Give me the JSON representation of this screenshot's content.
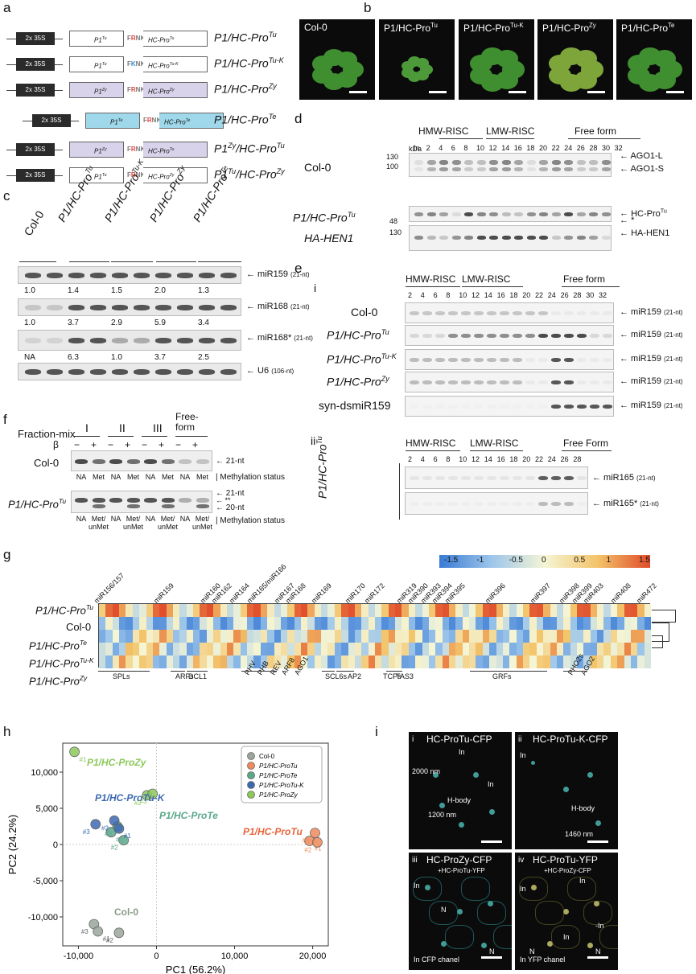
{
  "panels": {
    "a": "a",
    "b": "b",
    "c": "c",
    "d": "d",
    "e": "e",
    "f": "f",
    "g": "g",
    "h": "h",
    "i": "i"
  },
  "panel_a": {
    "promoter": "2x 35S",
    "constructs": [
      {
        "p1": "P1Tu",
        "motif": [
          "F",
          "R",
          "N",
          "K"
        ],
        "hc": "HC-ProTu",
        "name": "P1/HC-ProTu",
        "color": "#ffffff"
      },
      {
        "p1": "P1Tu",
        "motif": [
          "F",
          "K",
          "N",
          "K"
        ],
        "hc": "HC-ProTu-K",
        "name": "P1/HC-ProTu-K",
        "color": "#ffffff"
      },
      {
        "p1": "P1Zy",
        "motif": [
          "F",
          "R",
          "N",
          "K"
        ],
        "hc": "HC-ProZy",
        "name": "P1/HC-ProZy",
        "color": "#d8d2ea"
      },
      {
        "p1": "P1Te",
        "motif": [
          "F",
          "R",
          "N",
          "K"
        ],
        "hc": "HC-ProTe",
        "name": "P1/HC-ProTe",
        "color": "#9fd8ea"
      },
      {
        "p1": "P1Zy",
        "motif": [
          "F",
          "R",
          "N",
          "K"
        ],
        "hc": "HC-ProTu",
        "name": "P1Zy/HC-ProTu",
        "color": "#d8d2ea"
      },
      {
        "p1": "P1Tu",
        "motif": [
          "F",
          "R",
          "N",
          "K"
        ],
        "hc": "HC-ProZy",
        "name": "P1Tu/HC-ProZy",
        "color": "#ffffff"
      }
    ]
  },
  "panel_b": {
    "photos": [
      "Col-0",
      "P1/HC-ProTu",
      "P1/HC-ProTu-K",
      "P1/HC-ProZy",
      "P1/HC-ProTe"
    ]
  },
  "panel_c": {
    "lanes": [
      "Col-0",
      "P1/HC-ProTu",
      "P1/HC-ProTu-K",
      "P1/HC-ProZy",
      "P1/HC-ProTe"
    ],
    "blots": [
      {
        "label": "miR159",
        "size": "(21-nt)",
        "values": [
          "1.0",
          "1.4",
          "1.5",
          "2.0",
          "1.3"
        ]
      },
      {
        "label": "miR168",
        "size": "(21-nt)",
        "values": [
          "1.0",
          "3.7",
          "2.9",
          "5.9",
          "3.4"
        ]
      },
      {
        "label": "miR168*",
        "size": "(21-nt)",
        "values": [
          "NA",
          "6.3",
          "1.0",
          "3.7",
          "2.5"
        ]
      },
      {
        "label": "U6",
        "size": "(106-nt)",
        "values": []
      }
    ]
  },
  "panel_d": {
    "kda": "kDa",
    "groups": [
      "HMW-RISC",
      "LMW-RISC",
      "Free form"
    ],
    "fractions": [
      "In",
      "2",
      "4",
      "6",
      "8",
      "10",
      "12",
      "14",
      "16",
      "18",
      "20",
      "22",
      "24",
      "26",
      "28",
      "30",
      "32"
    ],
    "rows": [
      {
        "name": "Col-0",
        "markers": [
          "130",
          "100"
        ],
        "targets": [
          "AGO1-L",
          "AGO1-S"
        ]
      },
      {
        "name": "P1/HC-ProTu",
        "markers": [
          "48"
        ],
        "targets": [
          "HC-ProTu",
          "*"
        ]
      },
      {
        "name": "HA-HEN1",
        "markers": [
          "130"
        ],
        "targets": [
          "HA-HEN1"
        ]
      }
    ]
  },
  "panel_e": {
    "sub_i": "i",
    "sub_ii": "ii",
    "groups": [
      "HMW-RISC",
      "LMW-RISC",
      "Free form"
    ],
    "groups_ii": [
      "HMW-RISC",
      "LMW-RISC",
      "Free Form"
    ],
    "fractions": [
      "2",
      "4",
      "6",
      "8",
      "10",
      "12",
      "14",
      "16",
      "18",
      "20",
      "22",
      "24",
      "26",
      "28",
      "30",
      "32"
    ],
    "fractions_ii": [
      "2",
      "4",
      "6",
      "8",
      "10",
      "12",
      "14",
      "16",
      "18",
      "20",
      "22",
      "24",
      "26",
      "28"
    ],
    "rows_i": [
      {
        "name": "Col-0",
        "target": "miR159",
        "size": "(21-nt)"
      },
      {
        "name": "P1/HC-ProTu",
        "target": "miR159",
        "size": "(21-nt)"
      },
      {
        "name": "P1/HC-ProTu-K",
        "target": "miR159",
        "size": "(21-nt)"
      },
      {
        "name": "P1/HC-ProZy",
        "target": "miR159",
        "size": "(21-nt)"
      },
      {
        "name": "syn-dsmiR159",
        "target": "miR159",
        "size": "(21-nt)"
      }
    ],
    "row_ii_name": "P1/HC-ProTu",
    "rows_ii": [
      {
        "target": "miR165",
        "size": "(21-nt)"
      },
      {
        "target": "miR165*",
        "size": "(21-nt)"
      }
    ]
  },
  "panel_f": {
    "header": "Fraction-mix",
    "mixes": [
      "I",
      "II",
      "III",
      "Free-form"
    ],
    "beta": "β",
    "signs": [
      "−",
      "+",
      "−",
      "+",
      "−",
      "+",
      "−",
      "+"
    ],
    "rows": [
      {
        "name": "Col-0",
        "markers": [
          "21-nt"
        ],
        "status": [
          "NA",
          "Met",
          "NA",
          "Met",
          "NA",
          "Met",
          "NA",
          "Met"
        ]
      },
      {
        "name": "P1/HC-ProTu",
        "markers": [
          "21-nt",
          "**",
          "20-nt"
        ],
        "status": [
          "NA",
          "Met/ unMet",
          "NA",
          "Met/ unMet",
          "NA",
          "Met/ unMet",
          "NA",
          "Met/ unMet"
        ]
      }
    ],
    "status_label": "Methylation status"
  },
  "panel_g": {
    "scale_ticks": [
      "-1.5",
      "-1",
      "-0.5",
      "0",
      "0.5",
      "1",
      "1.5"
    ],
    "mirnas": [
      "miR156/157",
      "miR159",
      "miR160",
      "miR162",
      "miR164",
      "miR165/miR166",
      "miR167",
      "miR168",
      "miR169",
      "miR170",
      "miR172",
      "miR319",
      "miR390",
      "miR393",
      "miR394",
      "miR395",
      "miR396",
      "miR397",
      "miR398",
      "miR399",
      "miR403",
      "miR408",
      "miR472"
    ],
    "rows": [
      "P1/HC-ProTu",
      "Col-0",
      "P1/HC-ProTe",
      "P1/HC-ProTu-K",
      "P1/HC-ProZy"
    ],
    "targets": [
      "SPLs",
      "ARFs",
      "DCL1",
      "PHV",
      "PHB",
      "REV",
      "ARF8",
      "AGO1",
      "SCL6s",
      "AP2",
      "TCPs",
      "TAS3",
      "GRFs",
      "PHO2s",
      "AGO2"
    ]
  },
  "chart_data": {
    "type": "scatter",
    "xlabel": "PC1 (56.2%)",
    "ylabel": "PC2 (24.2%)",
    "xlim": [
      -12000,
      22000
    ],
    "ylim": [
      -14000,
      14000
    ],
    "xticks": [
      "-10,000",
      "0",
      "10,000",
      "20,000"
    ],
    "yticks": [
      "10,000",
      "5,000",
      "0",
      "-5,000",
      "-10,000"
    ],
    "legend": [
      "Col-0",
      "P1/HC-ProTu",
      "P1/HC-ProTe",
      "P1/HC-ProTu-K",
      "P1/HC-ProZy"
    ],
    "legend_position": "top-right",
    "series": [
      {
        "name": "Col-0",
        "color": "#9aa69a",
        "points": [
          {
            "x": -8000,
            "y": -11000,
            "label": "#3"
          },
          {
            "x": -7500,
            "y": -12000,
            "label": "#1"
          },
          {
            "x": -4800,
            "y": -12200,
            "label": "#2"
          }
        ]
      },
      {
        "name": "P1/HC-ProTu",
        "color": "#f08a5a",
        "points": [
          {
            "x": 20300,
            "y": 1600,
            "label": "#3"
          },
          {
            "x": 19600,
            "y": 500,
            "label": "#1"
          },
          {
            "x": 20600,
            "y": 300,
            "label": "#2"
          }
        ]
      },
      {
        "name": "P1/HC-ProTe",
        "color": "#5aa88a",
        "points": [
          {
            "x": -5000,
            "y": 2500,
            "label": "#3"
          },
          {
            "x": -5800,
            "y": 1700,
            "label": "#1"
          },
          {
            "x": -4200,
            "y": 600,
            "label": "#2"
          }
        ]
      },
      {
        "name": "P1/HC-ProTu-K",
        "color": "#3c6ab0",
        "points": [
          {
            "x": -7800,
            "y": 2800,
            "label": "#3"
          },
          {
            "x": -5400,
            "y": 3300,
            "label": "#2"
          },
          {
            "x": -4800,
            "y": 2200,
            "label": "#1"
          }
        ]
      },
      {
        "name": "P1/HC-ProZy",
        "color": "#8cc85a",
        "points": [
          {
            "x": -10500,
            "y": 12800,
            "label": "#1"
          },
          {
            "x": -1200,
            "y": 6800,
            "label": "#2"
          },
          {
            "x": -500,
            "y": 7000,
            "label": "#3"
          }
        ]
      }
    ],
    "series_labels": [
      "P1/HC-ProZy",
      "P1/HC-ProTu-K",
      "P1/HC-ProTe",
      "P1/HC-ProTu",
      "Col-0"
    ]
  },
  "panel_i": {
    "tiles": [
      {
        "num": "i",
        "title": "HC-ProTu-CFP",
        "notes": [
          "In",
          "In",
          "2000 nm",
          "H-body",
          "1200 nm"
        ]
      },
      {
        "num": "ii",
        "title": "HC-ProTu-K-CFP",
        "notes": [
          "In",
          "H-body",
          "1460 nm"
        ]
      },
      {
        "num": "iii",
        "title": "HC-ProZy-CFP",
        "sub": "+HC-ProTu-YFP",
        "notes": [
          "In",
          "N",
          "N",
          "In CFP chanel"
        ]
      },
      {
        "num": "iv",
        "title": "HC-ProTu-YFP",
        "sub": "+HC-ProZy-CFP",
        "notes": [
          "In",
          "In",
          "In",
          "-In",
          "N",
          "N",
          "In YFP chanel"
        ]
      }
    ]
  }
}
